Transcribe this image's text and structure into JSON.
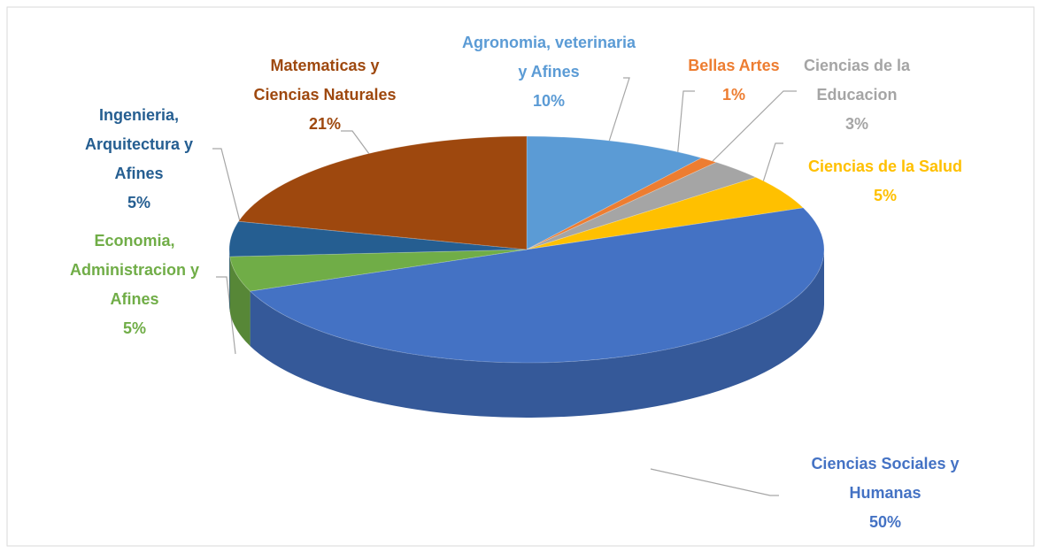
{
  "chart_data": {
    "type": "pie",
    "categories": [
      "Agronomia, veterinaria y Afines",
      "Bellas Artes",
      "Ciencias de la Educacion",
      "Ciencias de la Salud",
      "Ciencias Sociales y Humanas",
      "Economia, Administracion y Afines",
      "Ingenieria, Arquitectura y Afines",
      "Matematicas y Ciencias Naturales"
    ],
    "values": [
      10,
      1,
      3,
      5,
      50,
      5,
      5,
      21
    ],
    "value_labels": [
      "10%",
      "1%",
      "3%",
      "5%",
      "50%",
      "5%",
      "5%",
      "21%"
    ],
    "colors": [
      "#5b9bd5",
      "#ed7d31",
      "#a5a5a5",
      "#ffc000",
      "#4472c4",
      "#70ad47",
      "#255e91",
      "#9e480e"
    ]
  }
}
